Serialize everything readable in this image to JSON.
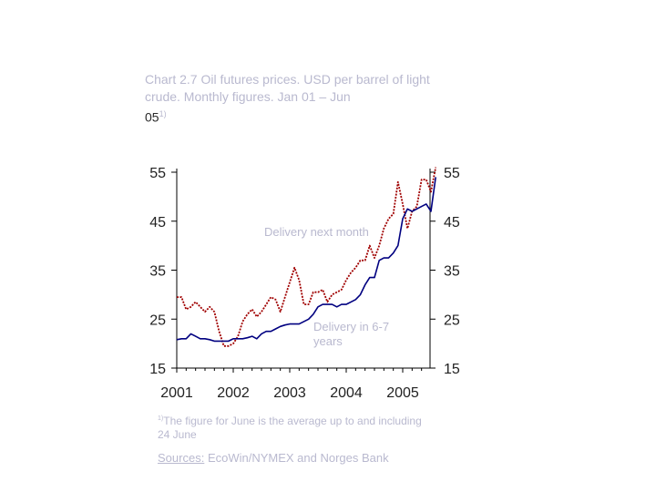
{
  "title": {
    "text": "Chart 2.7 Oil futures prices. USD per barrel of light crude. Monthly figures. Jan 01 – Jun",
    "continuation": "05",
    "sup": "1)"
  },
  "footnote": {
    "marker": "1)",
    "text": "The figure for June is the average up to and including 24 June"
  },
  "sources": {
    "label": "Sources:",
    "text": "EcoWin/NYMEX and Norges Bank"
  },
  "colors": {
    "series_next_month": "#a00000",
    "series_6_7_years": "#000080",
    "axis": "#000000",
    "label_text": "#b9b9cf"
  },
  "chart_data": {
    "type": "line",
    "title": "Oil futures prices. USD per barrel of light crude. Monthly figures. Jan 01 – Jun 05",
    "x_start": "2001-01",
    "x_ticks": [
      "2001",
      "2002",
      "2003",
      "2004",
      "2005"
    ],
    "y_ticks": [
      "15",
      "25",
      "35",
      "45",
      "55"
    ],
    "ylim": [
      15,
      57
    ],
    "grid": false,
    "series": [
      {
        "name": "Delivery next month",
        "color": "#a00000",
        "style": "dotted",
        "values": [
          29.5,
          29.5,
          27.0,
          27.5,
          28.5,
          27.5,
          26.5,
          27.5,
          26.5,
          22.5,
          19.5,
          19.5,
          20.0,
          21.5,
          24.5,
          26.0,
          27.0,
          25.5,
          26.5,
          28.0,
          29.5,
          29.0,
          26.5,
          29.5,
          32.5,
          35.5,
          33.0,
          28.0,
          28.0,
          30.5,
          30.5,
          31.0,
          28.5,
          30.0,
          30.5,
          31.0,
          33.0,
          34.5,
          35.5,
          37.0,
          37.0,
          40.0,
          37.5,
          40.0,
          43.5,
          45.5,
          46.5,
          53.0,
          48.5,
          43.5,
          47.0,
          48.0,
          53.5,
          53.5,
          51.0,
          56.0
        ]
      },
      {
        "name": "Delivery in 6-7 years",
        "color": "#000080",
        "style": "solid",
        "values": [
          20.8,
          21.0,
          21.0,
          22.0,
          21.5,
          21.0,
          21.0,
          20.8,
          20.5,
          20.5,
          20.5,
          20.5,
          21.0,
          21.0,
          21.0,
          21.2,
          21.5,
          21.0,
          22.0,
          22.5,
          22.5,
          23.0,
          23.5,
          23.8,
          24.0,
          24.0,
          24.0,
          24.5,
          25.0,
          26.0,
          27.5,
          28.0,
          28.0,
          28.0,
          27.5,
          28.0,
          28.0,
          28.5,
          29.0,
          30.0,
          32.0,
          33.5,
          33.5,
          37.0,
          37.5,
          37.5,
          38.5,
          40.0,
          45.5,
          47.5,
          47.0,
          47.5,
          48.0,
          48.5,
          47.0,
          54.0
        ]
      }
    ],
    "annotations": [
      "Delivery next month",
      "Delivery in 6-7 years"
    ]
  }
}
